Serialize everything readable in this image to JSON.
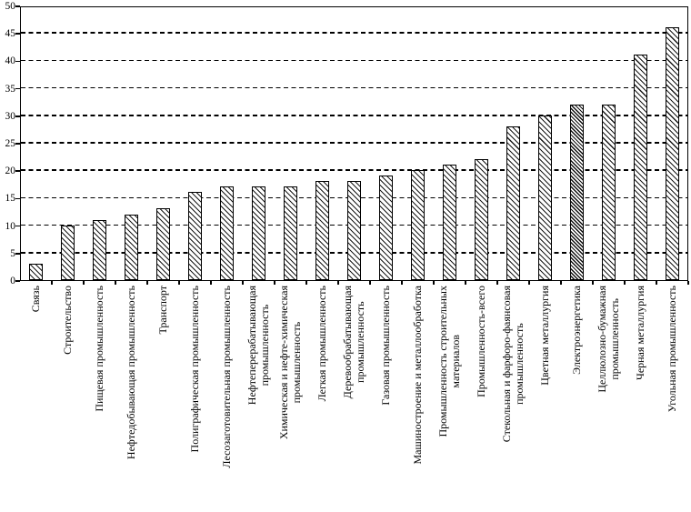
{
  "chart_data": {
    "type": "bar",
    "title": "",
    "xlabel": "",
    "ylabel": "",
    "ylim": [
      0,
      50
    ],
    "yticks": [
      0,
      5,
      10,
      15,
      20,
      25,
      30,
      35,
      40,
      45,
      50
    ],
    "grid": "horizontal-dashed",
    "legend": "none",
    "bar_fill": "#ffffff",
    "line_color": "#000000",
    "bar_hatch": "diagonal-45deg",
    "dense_hatch_category": "Электроэнергетика",
    "bars": [
      {
        "name": "Связь",
        "lines": [
          "Связь"
        ],
        "value": 3,
        "hatch": "normal"
      },
      {
        "name": "Строительство",
        "lines": [
          "Строительство"
        ],
        "value": 10,
        "hatch": "normal"
      },
      {
        "name": "Пищевая промышленность",
        "lines": [
          "Пищевая промышленность"
        ],
        "value": 11,
        "hatch": "normal"
      },
      {
        "name": "Нефтедобывающая промышленность",
        "lines": [
          "Нефтедобывающая промышленность"
        ],
        "value": 12,
        "hatch": "normal"
      },
      {
        "name": "Транспорт",
        "lines": [
          "Транспорт"
        ],
        "value": 13,
        "hatch": "normal"
      },
      {
        "name": "Полиграфическая промышленность",
        "lines": [
          "Полиграфическая промышленность"
        ],
        "value": 16,
        "hatch": "normal"
      },
      {
        "name": "Лесозаготовительная промышленность",
        "lines": [
          "Лесозаготовительная промышленность"
        ],
        "value": 17,
        "hatch": "normal"
      },
      {
        "name": "Нефтеперерабатывающая промышленность",
        "lines": [
          "Нефтеперерабатывающая",
          "промышленность"
        ],
        "value": 17,
        "hatch": "normal"
      },
      {
        "name": "Химическая и нефте-химическая промышленность",
        "lines": [
          "Химическая и нефте-химическая",
          "промышленность"
        ],
        "value": 17,
        "hatch": "normal"
      },
      {
        "name": "Легкая промышленность",
        "lines": [
          "Легкая промышленность"
        ],
        "value": 18,
        "hatch": "normal"
      },
      {
        "name": "Деревообрабатывающая промышленность",
        "lines": [
          "Деревообрабатывающая",
          "промышленность"
        ],
        "value": 18,
        "hatch": "normal"
      },
      {
        "name": "Газовая промышленность",
        "lines": [
          "Газовая промышленность"
        ],
        "value": 19,
        "hatch": "normal"
      },
      {
        "name": "Машиностроение и металлообработка",
        "lines": [
          "Машиностроение и металлообработка"
        ],
        "value": 20,
        "hatch": "normal"
      },
      {
        "name": "Промышленность строительных материалов",
        "lines": [
          "Промышленность строительных",
          "материалов"
        ],
        "value": 21,
        "hatch": "normal"
      },
      {
        "name": "Промышленность-всего",
        "lines": [
          "Промышленность-всего"
        ],
        "value": 22,
        "hatch": "normal"
      },
      {
        "name": "Стекольная и фарфоро-фаянсовая промышленность",
        "lines": [
          "Стекольная и фарфоро-фаянсовая",
          "промышленность"
        ],
        "value": 28,
        "hatch": "normal"
      },
      {
        "name": "Цветная металлургия",
        "lines": [
          "Цветная металлургия"
        ],
        "value": 30,
        "hatch": "normal"
      },
      {
        "name": "Электроэнергетика",
        "lines": [
          "Электроэнергетика"
        ],
        "value": 32,
        "hatch": "dense"
      },
      {
        "name": "Целлюлозно-бумажная промышленность",
        "lines": [
          "Целлюлозно-бумажная",
          "промышленность"
        ],
        "value": 32,
        "hatch": "normal"
      },
      {
        "name": "Черная металлургия",
        "lines": [
          "Черная металлургия"
        ],
        "value": 41,
        "hatch": "normal"
      },
      {
        "name": "Угольная промышленность",
        "lines": [
          "Угольная промышленность"
        ],
        "value": 46,
        "hatch": "normal"
      }
    ]
  }
}
